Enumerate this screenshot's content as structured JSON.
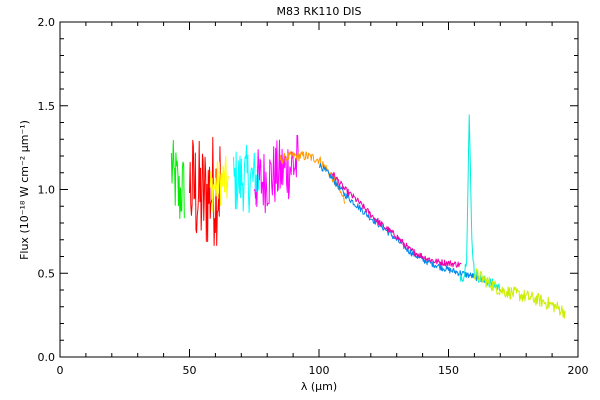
{
  "chart_data": {
    "type": "line",
    "title": "M83 RK110 DIS",
    "xlabel": "λ (μm)",
    "ylabel": "Flux (10⁻¹⁸ W cm⁻² μm⁻¹)",
    "xlim": [
      0,
      200
    ],
    "ylim": [
      0.0,
      2.0
    ],
    "x_ticks": [
      0,
      50,
      100,
      150,
      200
    ],
    "x_tick_labels": [
      "0",
      "50",
      "100",
      "150",
      "200"
    ],
    "y_ticks": [
      0.0,
      0.5,
      1.0,
      1.5,
      2.0
    ],
    "y_tick_labels": [
      "0.0",
      "0.5",
      "1.0",
      "1.5",
      "2.0"
    ],
    "grid": false,
    "legend": "none",
    "series": [
      {
        "color": "#00ee00",
        "noise": 0.22,
        "x": [
          43,
          44,
          45,
          46,
          47,
          48
        ],
        "y": [
          1.15,
          1.05,
          1.05,
          0.95,
          1.0,
          1.0
        ]
      },
      {
        "color": "#ff0000",
        "noise": 0.35,
        "x": [
          50,
          52,
          54,
          56,
          58,
          60,
          62
        ],
        "y": [
          1.0,
          1.0,
          0.95,
          0.95,
          1.0,
          1.0,
          1.05
        ]
      },
      {
        "color": "#ffff00",
        "noise": 0.15,
        "x": [
          58,
          60,
          62,
          64,
          65
        ],
        "y": [
          1.0,
          1.02,
          1.05,
          1.05,
          1.03
        ]
      },
      {
        "color": "#00ffff",
        "noise": 0.2,
        "x": [
          67,
          69,
          71,
          73,
          75,
          77
        ],
        "y": [
          1.05,
          1.05,
          1.07,
          1.06,
          1.05,
          1.07
        ]
      },
      {
        "color": "#ff00ff",
        "noise": 0.2,
        "x": [
          75,
          78,
          81,
          84,
          87,
          90,
          92
        ],
        "y": [
          1.05,
          1.05,
          1.07,
          1.1,
          1.12,
          1.15,
          1.15
        ]
      },
      {
        "color": "#ff9900",
        "noise": 0.03,
        "x": [
          85,
          90,
          95,
          100,
          105,
          110
        ],
        "y": [
          1.18,
          1.2,
          1.2,
          1.18,
          1.08,
          0.93
        ]
      },
      {
        "color": "#0088ee",
        "noise": 0.02,
        "x": [
          100,
          105,
          110,
          115,
          120,
          125,
          130,
          135,
          140,
          145,
          150,
          155,
          160,
          165
        ],
        "y": [
          1.15,
          1.07,
          0.97,
          0.9,
          0.83,
          0.77,
          0.7,
          0.63,
          0.58,
          0.55,
          0.52,
          0.5,
          0.48,
          0.45
        ]
      },
      {
        "color": "#ee00aa",
        "noise": 0.02,
        "x": [
          105,
          110,
          115,
          120,
          125,
          130,
          135,
          140,
          145,
          150,
          155
        ],
        "y": [
          1.1,
          1.0,
          0.93,
          0.85,
          0.78,
          0.72,
          0.64,
          0.6,
          0.57,
          0.56,
          0.55
        ]
      },
      {
        "color": "#00eedd",
        "noise": 0.03,
        "x": [
          154,
          156,
          157,
          158,
          159,
          160,
          162,
          165,
          168,
          170
        ],
        "y": [
          0.48,
          0.48,
          0.6,
          1.45,
          0.7,
          0.5,
          0.47,
          0.45,
          0.43,
          0.41
        ]
      },
      {
        "color": "#ccee00",
        "noise": 0.04,
        "x": [
          160,
          165,
          170,
          175,
          180,
          185,
          190,
          195
        ],
        "y": [
          0.5,
          0.45,
          0.4,
          0.38,
          0.36,
          0.34,
          0.31,
          0.27
        ]
      }
    ]
  }
}
